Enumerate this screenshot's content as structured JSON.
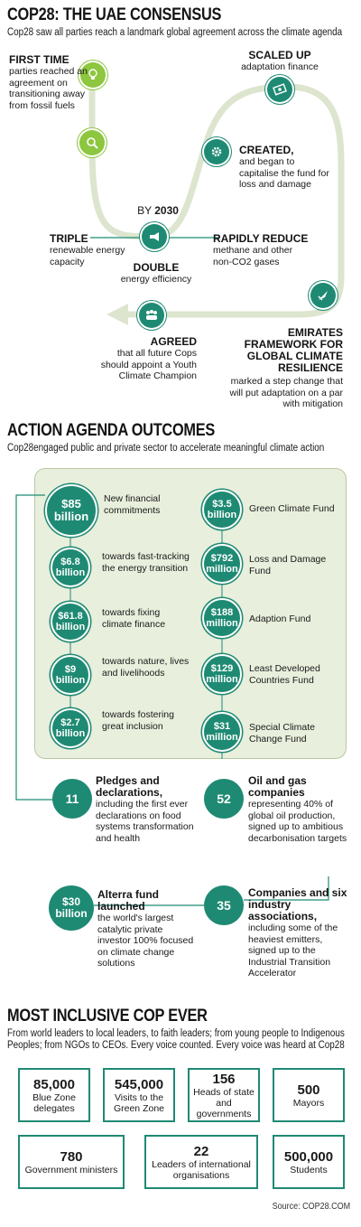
{
  "header": {
    "title": "COP28: THE UAE CONSENSUS",
    "subtitle": "Cop28 saw all parties reach a landmark global agreement across the climate agenda"
  },
  "consensus": {
    "first_time": {
      "title": "FIRST TIME",
      "text": "parties reached an agreement on transitioning away from fossil fuels"
    },
    "scaled_up": {
      "title": "SCALED UP",
      "text": "adaptation finance"
    },
    "created": {
      "title": "CREATED,",
      "text": "and began to  capitalise the fund for loss and damage"
    },
    "by_2030": {
      "prefix": "BY",
      "year": "2030"
    },
    "triple": {
      "title": "TRIPLE",
      "text": "renewable energy capacity"
    },
    "rapidly_reduce": {
      "title": "RAPIDLY REDUCE",
      "text1": "methane and other",
      "text2": "non-CO2 gases"
    },
    "double": {
      "title": "DOUBLE",
      "text": "energy efficiency"
    },
    "emirates": {
      "title": "EMIRATES FRAMEWORK FOR GLOBAL CLIMATE RESILIENCE",
      "text": "marked a step change that will put adaptation on a par with mitigation"
    },
    "agreed": {
      "title": "AGREED",
      "text": "that all future  Cops should appoint a Youth Climate Champion"
    }
  },
  "action": {
    "title": "ACTION AGENDA OUTCOMES",
    "subtitle": "Cop28engaged public and private sector to accelerate meaningful climate action",
    "left": [
      {
        "value": "$85 billion",
        "label": "New financial commitments"
      },
      {
        "value": "$6.8 billion",
        "label": "towards fast-tracking the energy transition"
      },
      {
        "value": "$61.8 billion",
        "label": "towards fixing climate finance"
      },
      {
        "value": "$9 billion",
        "label": "towards nature, lives and livelihoods"
      },
      {
        "value": "$2.7 billion",
        "label": "towards fostering great inclusion"
      }
    ],
    "right": [
      {
        "value": "$3.5 billion",
        "label": "Green Climate Fund"
      },
      {
        "value": "$792 million",
        "label": "Loss and Damage Fund"
      },
      {
        "value": "$188 million",
        "label": "Adaption Fund"
      },
      {
        "value": "$129 million",
        "label": "Least Developed Countries Fund"
      },
      {
        "value": "$31 million",
        "label": "Special Climate Change Fund"
      }
    ],
    "pledges": {
      "value": "11",
      "title": "Pledges and declarations,",
      "text": "including the first ever declarations on food systems transformation and health"
    },
    "oil_gas": {
      "value": "52",
      "title": "Oil and gas companies",
      "text": "representing 40% of global oil production, signed up to ambitious decarbonisation targets"
    },
    "alterra": {
      "value": "$30 billion",
      "title": "Alterra fund launched",
      "text": "the world's largest catalytic private investor 100% focused on climate change solutions"
    },
    "companies": {
      "value": "35",
      "title": "Companies and six industry associations,",
      "text": "including some of the heaviest emitters, signed up to the Industrial Transition Accelerator"
    }
  },
  "inclusive": {
    "title": "MOST INCLUSIVE COP EVER",
    "subtitle": "From world leaders to local leaders, to faith leaders; from young people to Indigenous Peoples; from NGOs to CEOs. Every voice counted. Every voice was heard at Cop28",
    "stats": [
      {
        "value": "85,000",
        "label": "Blue Zone delegates"
      },
      {
        "value": "545,000",
        "label": "Visits to the Green Zone"
      },
      {
        "value": "156",
        "label": "Heads of state and governments"
      },
      {
        "value": "500",
        "label": "Mayors"
      },
      {
        "value": "780",
        "label": "Government ministers"
      },
      {
        "value": "22",
        "label": "Leaders of international organisations"
      },
      {
        "value": "500,000",
        "label": "Students"
      }
    ],
    "source": "Source: COP28.COM"
  },
  "colors": {
    "teal": "#1f8a73",
    "lime": "#8dc63f",
    "path": "#dde5cf",
    "panel": "#e8efdc"
  },
  "icons": [
    "lightbulb-icon",
    "magnifier-icon",
    "money-icon",
    "gear-icon",
    "megaphone-icon",
    "rocket-icon",
    "people-icon"
  ]
}
